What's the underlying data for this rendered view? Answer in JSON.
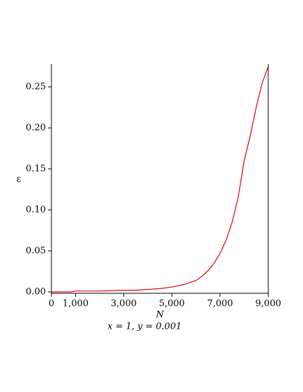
{
  "chart_data": {
    "type": "line",
    "subtitle": "x = 1, y = 0.001",
    "x_label": "N",
    "y_label": "ε",
    "x": [
      0,
      800,
      1000,
      2000,
      3000,
      3500,
      4000,
      4500,
      5000,
      5500,
      6000,
      6250,
      6500,
      6750,
      7000,
      7250,
      7500,
      7750,
      8000,
      8250,
      8500,
      8750,
      9000
    ],
    "series": [
      {
        "color": "#e00000",
        "values": [
          0,
          0,
          0.001,
          0.001,
          0.002,
          0.002,
          0.003,
          0.004,
          0.006,
          0.009,
          0.014,
          0.019,
          0.026,
          0.035,
          0.047,
          0.063,
          0.085,
          0.115,
          0.16,
          0.19,
          0.225,
          0.255,
          0.275
        ]
      }
    ],
    "xlim": [
      0,
      9000
    ],
    "xticks": [
      0,
      {
        "value": 1000,
        "label": "1,000"
      },
      {
        "value": 3000,
        "label": "3,000"
      },
      {
        "value": 5000,
        "label": "5,000"
      },
      {
        "value": 7000,
        "label": "7,000"
      },
      {
        "value": 9000,
        "label": "9,000"
      }
    ],
    "ylim": [
      0,
      0.278
    ],
    "yticks": [
      {
        "value": 0,
        "label": "0.00"
      },
      0.05,
      {
        "value": 0.1,
        "label": "0.10"
      },
      0.15,
      {
        "value": 0.2,
        "label": "0.20"
      },
      0.25
    ]
  }
}
